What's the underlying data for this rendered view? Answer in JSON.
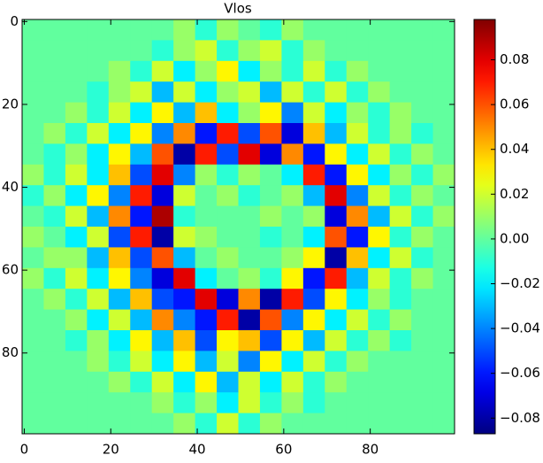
{
  "chart_data": {
    "type": "heatmap",
    "title": "Vlos",
    "colormap": "jet",
    "xlim": [
      -0.5,
      99.5
    ],
    "ylim": [
      99.5,
      -0.5
    ],
    "xticks": [
      0,
      20,
      40,
      60,
      80
    ],
    "yticks": [
      0,
      20,
      40,
      60,
      80
    ],
    "clim": [
      -0.087,
      0.098
    ],
    "cticks": [
      {
        "value": -0.08,
        "label": "−0.08"
      },
      {
        "value": -0.06,
        "label": "−0.06"
      },
      {
        "value": -0.04,
        "label": "−0.04"
      },
      {
        "value": -0.02,
        "label": "−0.02"
      },
      {
        "value": 0,
        "label": "0.00"
      },
      {
        "value": 0.02,
        "label": "0.02"
      },
      {
        "value": 0.04,
        "label": "0.04"
      },
      {
        "value": 0.06,
        "label": "0.06"
      },
      {
        "value": 0.08,
        "label": "0.08"
      }
    ],
    "z": [
      [
        0,
        0,
        0,
        0,
        0,
        0,
        0,
        0.01,
        -0.01,
        0.01,
        0,
        -0.01,
        0.01,
        0,
        0,
        0,
        0,
        0,
        0,
        0
      ],
      [
        0,
        0,
        0,
        0,
        0,
        0,
        -0.01,
        0.01,
        0.02,
        -0.01,
        0.01,
        0.02,
        -0.01,
        0.01,
        0,
        0,
        0,
        0,
        0,
        0
      ],
      [
        0,
        0,
        0,
        0,
        0.01,
        -0.01,
        0.02,
        -0.02,
        0.01,
        0.03,
        -0.02,
        0.01,
        -0.01,
        0.02,
        -0.01,
        0.01,
        0,
        0,
        0,
        0
      ],
      [
        0,
        0,
        0,
        -0.01,
        0.01,
        0.02,
        -0.03,
        0.02,
        -0.02,
        0.01,
        0.02,
        -0.03,
        0.02,
        -0.01,
        0.02,
        -0.01,
        0.01,
        0,
        0,
        0
      ],
      [
        0,
        0,
        0.01,
        -0.01,
        0.02,
        -0.02,
        0.03,
        -0.03,
        0.04,
        -0.02,
        0.01,
        0.03,
        -0.04,
        0.02,
        -0.02,
        0.01,
        -0.01,
        0.01,
        0,
        0
      ],
      [
        0,
        0.01,
        -0.01,
        0.02,
        -0.02,
        0.03,
        -0.04,
        0.05,
        -0.06,
        0.07,
        -0.05,
        0.06,
        -0.07,
        0.04,
        -0.03,
        0.02,
        -0.01,
        0.01,
        -0.01,
        0
      ],
      [
        0,
        -0.01,
        0.01,
        -0.02,
        0.03,
        -0.03,
        0.06,
        -0.08,
        0.07,
        -0.05,
        0.08,
        -0.07,
        0.05,
        -0.06,
        0.03,
        -0.02,
        0.02,
        -0.01,
        0.01,
        0
      ],
      [
        0.01,
        -0.01,
        0.02,
        -0.02,
        0.04,
        -0.05,
        0.08,
        -0.04,
        0.01,
        -0.01,
        0.01,
        0,
        -0.02,
        0.07,
        -0.06,
        0.03,
        -0.02,
        0.01,
        -0.01,
        0.01
      ],
      [
        -0.01,
        0.01,
        -0.02,
        0.03,
        -0.04,
        0.07,
        -0.07,
        0.02,
        0,
        0.01,
        -0.01,
        0,
        0.01,
        -0.03,
        0.08,
        -0.04,
        0.02,
        -0.01,
        0.01,
        0
      ],
      [
        0,
        -0.01,
        0.02,
        -0.03,
        0.05,
        -0.06,
        0.09,
        -0.01,
        0,
        0,
        0,
        0.01,
        0,
        0.01,
        -0.07,
        0.05,
        -0.03,
        0.02,
        -0.01,
        0.01
      ],
      [
        0.01,
        0,
        -0.02,
        0.02,
        -0.05,
        0.07,
        -0.08,
        0.02,
        0.01,
        0,
        0,
        -0.01,
        0,
        -0.02,
        0.06,
        -0.06,
        0.03,
        -0.01,
        0.01,
        0
      ],
      [
        0,
        0.01,
        0.01,
        -0.03,
        0.04,
        -0.05,
        0.06,
        -0.03,
        0,
        0.01,
        0,
        0,
        0.01,
        0.03,
        -0.08,
        0.04,
        -0.02,
        0.02,
        -0.01,
        0
      ],
      [
        0.01,
        -0.01,
        0.02,
        -0.02,
        0.03,
        -0.04,
        -0.07,
        0.08,
        -0.02,
        0,
        0.01,
        -0.01,
        0.03,
        -0.06,
        0.07,
        -0.03,
        0.02,
        -0.01,
        0.01,
        0
      ],
      [
        0,
        0.01,
        -0.01,
        0.02,
        -0.03,
        0.04,
        -0.05,
        -0.06,
        0.08,
        -0.07,
        0.05,
        -0.08,
        0.07,
        -0.05,
        0.03,
        -0.02,
        0.01,
        -0.01,
        0,
        0
      ],
      [
        0,
        0,
        0.01,
        -0.02,
        0.02,
        -0.03,
        0.05,
        -0.04,
        -0.06,
        0.07,
        -0.08,
        0.06,
        -0.04,
        0.03,
        -0.02,
        0.02,
        -0.01,
        0.01,
        0,
        0
      ],
      [
        0,
        0,
        -0.01,
        0.01,
        -0.02,
        0.03,
        -0.03,
        0.04,
        -0.05,
        0.03,
        0.04,
        -0.05,
        0.03,
        -0.03,
        0.02,
        -0.01,
        0.01,
        -0.01,
        0,
        0
      ],
      [
        0,
        0,
        0,
        0.01,
        -0.01,
        0.02,
        -0.02,
        0.03,
        -0.03,
        0.02,
        -0.04,
        0.03,
        -0.02,
        0.02,
        -0.01,
        0.01,
        0,
        0,
        0,
        0
      ],
      [
        0,
        0,
        0,
        0,
        0.01,
        -0.01,
        0.02,
        -0.02,
        0.03,
        -0.03,
        0.02,
        -0.02,
        0.02,
        -0.01,
        0.01,
        0,
        0,
        0,
        0,
        0
      ],
      [
        0,
        0,
        0,
        0,
        0,
        0,
        0.01,
        -0.01,
        0.01,
        -0.02,
        0.02,
        -0.01,
        0.01,
        -0.01,
        0,
        0,
        0,
        0,
        0,
        0
      ],
      [
        0,
        0,
        0,
        0,
        0,
        0,
        0,
        0.01,
        -0.01,
        0.02,
        -0.01,
        0.01,
        0,
        0,
        0,
        0,
        0,
        0,
        0,
        0
      ]
    ]
  }
}
